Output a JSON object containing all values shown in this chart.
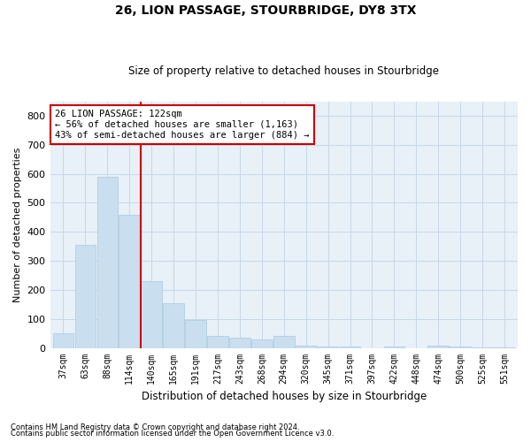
{
  "title1": "26, LION PASSAGE, STOURBRIDGE, DY8 3TX",
  "title2": "Size of property relative to detached houses in Stourbridge",
  "xlabel": "Distribution of detached houses by size in Stourbridge",
  "ylabel": "Number of detached properties",
  "categories": [
    "37sqm",
    "63sqm",
    "88sqm",
    "114sqm",
    "140sqm",
    "165sqm",
    "191sqm",
    "217sqm",
    "243sqm",
    "268sqm",
    "294sqm",
    "320sqm",
    "345sqm",
    "371sqm",
    "397sqm",
    "422sqm",
    "448sqm",
    "474sqm",
    "500sqm",
    "525sqm",
    "551sqm"
  ],
  "values": [
    50,
    355,
    590,
    460,
    230,
    155,
    95,
    40,
    35,
    30,
    40,
    8,
    5,
    5,
    0,
    5,
    0,
    8,
    5,
    3,
    2
  ],
  "bar_color": "#c9dff0",
  "bar_edge_color": "#a8c8e0",
  "annotation_text": "26 LION PASSAGE: 122sqm\n← 56% of detached houses are smaller (1,163)\n43% of semi-detached houses are larger (884) →",
  "annotation_box_color": "#ffffff",
  "annotation_box_edge_color": "#cc0000",
  "red_line_color": "#cc0000",
  "grid_color": "#c8d8e8",
  "background_color": "#e8f0f8",
  "ylim": [
    0,
    850
  ],
  "yticks": [
    0,
    100,
    200,
    300,
    400,
    500,
    600,
    700,
    800
  ],
  "footnote1": "Contains HM Land Registry data © Crown copyright and database right 2024.",
  "footnote2": "Contains public sector information licensed under the Open Government Licence v3.0."
}
